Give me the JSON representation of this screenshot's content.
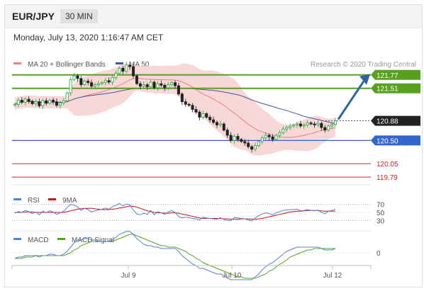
{
  "header": {
    "pair": "EUR/JPY",
    "timeframe": "30 MIN"
  },
  "datetime": "Monday, July 13, 2020 1:16:47 AM CET",
  "colors": {
    "up": "#22a63a",
    "down": "#222222",
    "ma20": "#f08080",
    "bands": "#f6c9c9",
    "ma50": "#3a5a9a",
    "resistance": "#5aa020",
    "support": "#3366cc",
    "target": "#cc2222",
    "arrow": "#2f63a6",
    "rsi": "#5a7fd0",
    "rsi_ma": "#cc1111",
    "macd": "#5a7fd0",
    "macd_signal": "#5aa020"
  },
  "chart_data": [
    {
      "type": "candlestick",
      "legend": [
        "MA 20 + Bollinger Bands",
        "MA 50"
      ],
      "legend_placement": "top-left",
      "credit": "Research © 2020 Trading Central",
      "x_tick_labels": [
        "Jul 9",
        "Jul 10",
        "Jul 12"
      ],
      "ylim": [
        119.6,
        122.0
      ],
      "grid": false,
      "levels": [
        {
          "label": "121.77",
          "value": 121.77,
          "kind": "resistance"
        },
        {
          "label": "121.51",
          "value": 121.51,
          "kind": "resistance"
        },
        {
          "label": "120.88",
          "value": 120.88,
          "kind": "last"
        },
        {
          "label": "120.50",
          "value": 120.5,
          "kind": "support"
        },
        {
          "label": "120.05",
          "value": 120.05,
          "kind": "target"
        },
        {
          "label": "119.79",
          "value": 119.79,
          "kind": "target"
        }
      ],
      "projection": "up",
      "close_series": [
        121.2,
        121.28,
        121.24,
        121.3,
        121.26,
        121.21,
        121.25,
        121.17,
        121.27,
        121.22,
        121.28,
        121.25,
        121.18,
        121.23,
        121.27,
        121.42,
        121.68,
        121.75,
        121.7,
        121.58,
        121.65,
        121.62,
        121.55,
        121.58,
        121.6,
        121.62,
        121.66,
        121.63,
        121.72,
        121.8,
        121.9,
        121.84,
        121.96,
        121.93,
        121.75,
        121.6,
        121.55,
        121.58,
        121.54,
        121.63,
        121.52,
        121.6,
        121.57,
        121.52,
        121.58,
        121.62,
        121.56,
        121.4,
        121.25,
        121.2,
        121.18,
        121.1,
        121.05,
        120.95,
        121.02,
        120.95,
        120.9,
        120.85,
        120.8,
        120.82,
        120.7,
        120.6,
        120.5,
        120.58,
        120.52,
        120.48,
        120.45,
        120.38,
        120.33,
        120.4,
        120.48,
        120.55,
        120.6,
        120.57,
        120.52,
        120.6,
        120.65,
        120.72,
        120.75,
        120.78,
        120.8,
        120.82,
        120.78,
        120.8,
        120.84,
        120.82,
        120.8,
        120.83,
        120.75,
        120.7,
        120.78,
        120.81,
        120.88
      ]
    },
    {
      "type": "line",
      "legend": [
        "RSI",
        "9MA"
      ],
      "y_tick_labels": [
        "70",
        "50",
        "30"
      ],
      "ylim": [
        20,
        80
      ],
      "rsi": [
        48,
        52,
        50,
        55,
        52,
        47,
        51,
        44,
        53,
        49,
        54,
        51,
        45,
        49,
        53,
        62,
        70,
        68,
        64,
        55,
        60,
        57,
        51,
        54,
        56,
        58,
        61,
        58,
        64,
        68,
        72,
        66,
        71,
        69,
        56,
        46,
        44,
        48,
        45,
        55,
        44,
        52,
        49,
        45,
        51,
        55,
        50,
        40,
        36,
        38,
        37,
        35,
        34,
        31,
        38,
        36,
        35,
        34,
        33,
        37,
        32,
        30,
        29,
        38,
        36,
        35,
        34,
        31,
        29,
        36,
        42,
        46,
        49,
        47,
        44,
        49,
        52,
        55,
        56,
        57,
        57,
        58,
        54,
        55,
        57,
        55,
        54,
        56,
        50,
        47,
        53,
        55,
        58
      ],
      "rsi_ma": [
        50,
        50,
        50,
        51,
        51,
        51,
        50,
        50,
        50,
        50,
        50,
        50,
        50,
        50,
        50,
        52,
        54,
        56,
        58,
        59,
        60,
        60,
        60,
        59,
        58,
        57,
        57,
        57,
        58,
        59,
        61,
        62,
        64,
        66,
        65,
        63,
        60,
        57,
        54,
        52,
        50,
        49,
        49,
        48,
        48,
        49,
        49,
        48,
        46,
        44,
        42,
        40,
        38,
        36,
        35,
        35,
        35,
        35,
        35,
        35,
        34,
        34,
        33,
        33,
        33,
        34,
        34,
        34,
        33,
        33,
        34,
        35,
        37,
        39,
        41,
        43,
        45,
        47,
        49,
        51,
        52,
        53,
        53,
        54,
        55,
        55,
        55,
        55,
        54,
        53,
        53,
        53,
        53
      ]
    },
    {
      "type": "line",
      "legend": [
        "MACD",
        "MACD Signal"
      ],
      "y_tick_labels": [
        "0"
      ],
      "ylim": [
        -0.3,
        0.3
      ],
      "macd": [
        -0.04,
        -0.03,
        -0.03,
        -0.02,
        -0.02,
        -0.02,
        -0.02,
        -0.03,
        -0.02,
        -0.02,
        -0.01,
        -0.01,
        -0.02,
        -0.02,
        -0.01,
        0.01,
        0.04,
        0.07,
        0.09,
        0.09,
        0.1,
        0.1,
        0.09,
        0.09,
        0.08,
        0.08,
        0.08,
        0.08,
        0.09,
        0.11,
        0.13,
        0.14,
        0.15,
        0.15,
        0.13,
        0.1,
        0.08,
        0.06,
        0.05,
        0.05,
        0.04,
        0.04,
        0.03,
        0.03,
        0.03,
        0.03,
        0.03,
        0.01,
        -0.02,
        -0.04,
        -0.06,
        -0.08,
        -0.09,
        -0.11,
        -0.11,
        -0.12,
        -0.13,
        -0.14,
        -0.15,
        -0.15,
        -0.16,
        -0.18,
        -0.19,
        -0.19,
        -0.19,
        -0.19,
        -0.19,
        -0.19,
        -0.19,
        -0.17,
        -0.15,
        -0.12,
        -0.1,
        -0.08,
        -0.07,
        -0.05,
        -0.03,
        -0.01,
        0.01,
        0.02,
        0.03,
        0.04,
        0.04,
        0.04,
        0.04,
        0.04,
        0.04,
        0.04,
        0.03,
        0.02,
        0.02,
        0.02,
        0.03
      ],
      "macd_signal": [
        -0.04,
        -0.04,
        -0.04,
        -0.03,
        -0.03,
        -0.03,
        -0.02,
        -0.02,
        -0.02,
        -0.02,
        -0.02,
        -0.02,
        -0.02,
        -0.02,
        -0.02,
        -0.01,
        0.0,
        0.02,
        0.03,
        0.05,
        0.06,
        0.07,
        0.08,
        0.08,
        0.08,
        0.08,
        0.08,
        0.08,
        0.08,
        0.09,
        0.1,
        0.11,
        0.12,
        0.13,
        0.13,
        0.12,
        0.11,
        0.1,
        0.09,
        0.08,
        0.07,
        0.06,
        0.05,
        0.05,
        0.04,
        0.04,
        0.04,
        0.03,
        0.02,
        0.01,
        -0.01,
        -0.02,
        -0.04,
        -0.05,
        -0.07,
        -0.08,
        -0.09,
        -0.1,
        -0.11,
        -0.12,
        -0.13,
        -0.14,
        -0.15,
        -0.16,
        -0.17,
        -0.17,
        -0.18,
        -0.18,
        -0.18,
        -0.18,
        -0.17,
        -0.16,
        -0.15,
        -0.13,
        -0.12,
        -0.1,
        -0.08,
        -0.07,
        -0.05,
        -0.03,
        -0.02,
        -0.01,
        0.0,
        0.01,
        0.02,
        0.02,
        0.03,
        0.03,
        0.03,
        0.03,
        0.03,
        0.03,
        0.03
      ]
    }
  ]
}
